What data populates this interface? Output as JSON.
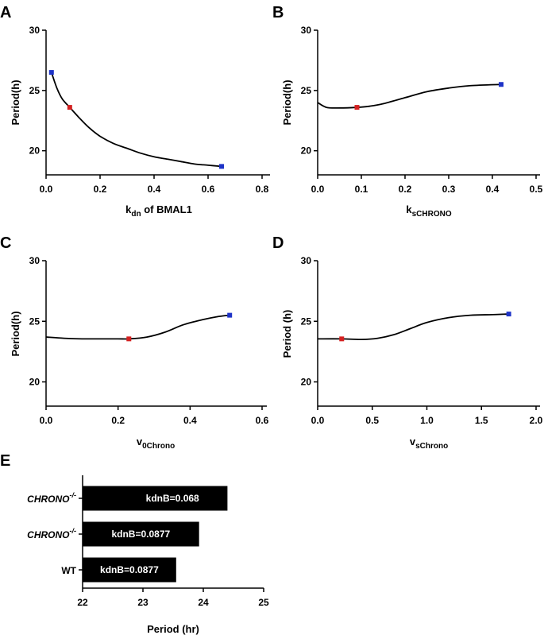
{
  "panels": [
    {
      "letter": "A",
      "yticks": [
        "20",
        "25",
        "30"
      ],
      "xticks": [
        "0.0",
        "0.2",
        "0.4",
        "0.6",
        "0.8"
      ],
      "ylabel": "Period(h)",
      "xlabel_main": "k",
      "xlabel_sub": "dn",
      "xlabel_suffix": " of BMAL1"
    },
    {
      "letter": "B",
      "yticks": [
        "20",
        "25",
        "30"
      ],
      "xticks": [
        "0.0",
        "0.1",
        "0.2",
        "0.3",
        "0.4",
        "0.5"
      ],
      "ylabel": "Period(h)",
      "xlabel_main": "k",
      "xlabel_sub": "sCHRONO",
      "xlabel_suffix": ""
    },
    {
      "letter": "C",
      "yticks": [
        "20",
        "25",
        "30"
      ],
      "xticks": [
        "0.0",
        "0.2",
        "0.4",
        "0.6"
      ],
      "ylabel": "Period(h)",
      "xlabel_main": "v",
      "xlabel_sub": "0Chrono",
      "xlabel_suffix": ""
    },
    {
      "letter": "D",
      "yticks": [
        "20",
        "25",
        "30"
      ],
      "xticks": [
        "0.0",
        "0.5",
        "1.0",
        "1.5",
        "2.0"
      ],
      "ylabel": "Period (h)",
      "xlabel_main": "v",
      "xlabel_sub": "sChrono",
      "xlabel_suffix": ""
    }
  ],
  "panel_e": {
    "letter": "E",
    "xticks": [
      "22",
      "23",
      "24",
      "25"
    ],
    "xlabel": "Period (hr)",
    "cat_main": [
      "CHRONO",
      "CHRONO",
      "WT"
    ],
    "cat_sup": [
      "-/-",
      "-/-",
      ""
    ],
    "bar_labels": [
      "kdnB=0.068",
      "kdnB=0.0877",
      "kdnB=0.0877"
    ]
  },
  "chart_data": [
    {
      "type": "line",
      "title": "A",
      "xlabel": "kdn of BMAL1",
      "ylabel": "Period(h)",
      "xlim": [
        0,
        0.8
      ],
      "ylim": [
        18,
        30
      ],
      "x": [
        0.02,
        0.04,
        0.06,
        0.0877,
        0.12,
        0.16,
        0.2,
        0.25,
        0.3,
        0.35,
        0.4,
        0.45,
        0.5,
        0.55,
        0.6,
        0.65
      ],
      "y": [
        26.5,
        25.2,
        24.3,
        23.6,
        22.8,
        21.9,
        21.2,
        20.6,
        20.2,
        19.8,
        19.5,
        19.3,
        19.1,
        18.9,
        18.8,
        18.7
      ],
      "markers": [
        {
          "x": 0.02,
          "y": 26.5,
          "color": "#1e33c7"
        },
        {
          "x": 0.0877,
          "y": 23.6,
          "color": "#d42020"
        },
        {
          "x": 0.65,
          "y": 18.7,
          "color": "#1e33c7"
        }
      ]
    },
    {
      "type": "line",
      "title": "B",
      "xlabel": "ksCHRONO",
      "ylabel": "Period(h)",
      "xlim": [
        0,
        0.5
      ],
      "ylim": [
        18,
        30
      ],
      "x": [
        0.0,
        0.02,
        0.05,
        0.09,
        0.12,
        0.15,
        0.2,
        0.25,
        0.3,
        0.35,
        0.42
      ],
      "y": [
        24.0,
        23.6,
        23.55,
        23.6,
        23.7,
        23.9,
        24.4,
        24.9,
        25.2,
        25.4,
        25.5
      ],
      "markers": [
        {
          "x": 0.09,
          "y": 23.6,
          "color": "#d42020"
        },
        {
          "x": 0.42,
          "y": 25.5,
          "color": "#1e33c7"
        }
      ]
    },
    {
      "type": "line",
      "title": "C",
      "xlabel": "v0Chrono",
      "ylabel": "Period(h)",
      "xlim": [
        0,
        0.6
      ],
      "ylim": [
        18,
        30
      ],
      "x": [
        0.0,
        0.05,
        0.1,
        0.15,
        0.2,
        0.23,
        0.28,
        0.33,
        0.38,
        0.43,
        0.48,
        0.51
      ],
      "y": [
        23.7,
        23.6,
        23.55,
        23.55,
        23.55,
        23.55,
        23.7,
        24.1,
        24.7,
        25.1,
        25.4,
        25.5
      ],
      "markers": [
        {
          "x": 0.23,
          "y": 23.55,
          "color": "#d42020"
        },
        {
          "x": 0.51,
          "y": 25.5,
          "color": "#1e33c7"
        }
      ]
    },
    {
      "type": "line",
      "title": "D",
      "xlabel": "vsChrono",
      "ylabel": "Period (h)",
      "xlim": [
        0,
        2.0
      ],
      "ylim": [
        18,
        30
      ],
      "x": [
        0.0,
        0.22,
        0.4,
        0.55,
        0.7,
        0.85,
        1.0,
        1.2,
        1.4,
        1.6,
        1.75
      ],
      "y": [
        23.55,
        23.55,
        23.5,
        23.6,
        23.9,
        24.4,
        24.9,
        25.3,
        25.5,
        25.55,
        25.6
      ],
      "markers": [
        {
          "x": 0.22,
          "y": 23.55,
          "color": "#d42020"
        },
        {
          "x": 1.75,
          "y": 25.6,
          "color": "#1e33c7"
        }
      ]
    },
    {
      "type": "bar",
      "title": "E",
      "orientation": "horizontal",
      "categories": [
        "CHRONO-/-",
        "CHRONO-/-",
        "WT"
      ],
      "values": [
        24.4,
        23.93,
        23.55
      ],
      "labels": [
        "kdnB=0.068",
        "kdnB=0.0877",
        "kdnB=0.0877"
      ],
      "xlabel": "Period (hr)",
      "xlim": [
        22,
        25
      ],
      "bar_color": "#000000"
    }
  ]
}
